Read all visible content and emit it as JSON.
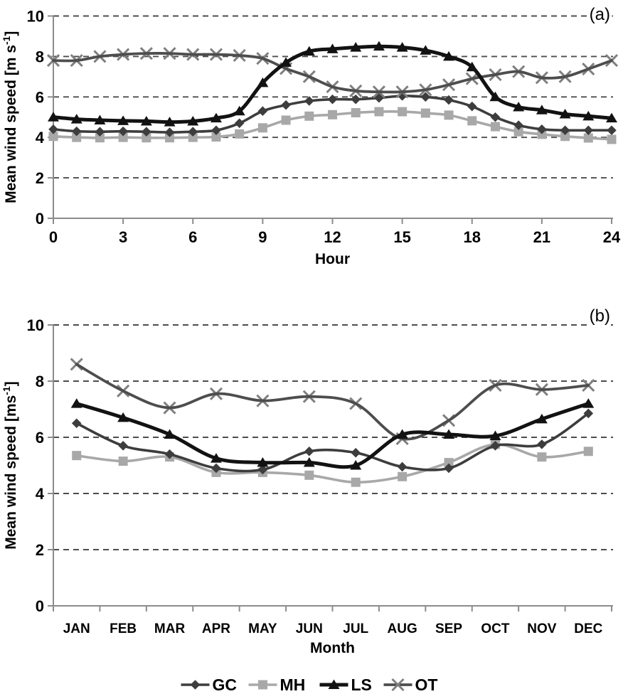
{
  "figure": {
    "background": "#ffffff",
    "text_color": "#000000",
    "axis_color": "#8c8c8c",
    "grid_color": "#4d4d4d"
  },
  "chart_data": [
    {
      "id": "a",
      "type": "line",
      "panel_label": "(a)",
      "xlabel": "Hour",
      "ylabel": "Mean wind speed [m s⁻¹]",
      "x": [
        0,
        1,
        2,
        3,
        4,
        5,
        6,
        7,
        8,
        9,
        10,
        11,
        12,
        13,
        14,
        15,
        16,
        17,
        18,
        19,
        20,
        21,
        22,
        23,
        24
      ],
      "xticks": [
        0,
        3,
        6,
        9,
        12,
        15,
        18,
        21,
        24
      ],
      "ylim": [
        0,
        10
      ],
      "yticks": [
        0,
        2,
        4,
        6,
        8,
        10
      ],
      "grid": "horizontal-dashed",
      "series": [
        {
          "name": "GC",
          "marker": "diamond",
          "color": "#3d3d3d",
          "marker_color": "#3d3d3d",
          "line_width": 3.6,
          "values": [
            4.4,
            4.3,
            4.28,
            4.3,
            4.28,
            4.25,
            4.28,
            4.35,
            4.7,
            5.3,
            5.6,
            5.8,
            5.88,
            5.88,
            5.95,
            6.05,
            6.0,
            5.85,
            5.53,
            5.0,
            4.6,
            4.4,
            4.35,
            4.35,
            4.35
          ]
        },
        {
          "name": "MH",
          "marker": "square",
          "color": "#a8a8a8",
          "marker_color": "#a8a8a8",
          "line_width": 3.6,
          "values": [
            4.05,
            4.0,
            3.98,
            4.0,
            3.98,
            3.98,
            4.0,
            4.02,
            4.17,
            4.47,
            4.85,
            5.05,
            5.12,
            5.22,
            5.27,
            5.27,
            5.2,
            5.1,
            4.82,
            4.53,
            4.28,
            4.15,
            4.05,
            3.97,
            3.9
          ]
        },
        {
          "name": "LS",
          "marker": "triangle",
          "color": "#121212",
          "marker_color": "#121212",
          "line_width": 5,
          "values": [
            5.0,
            4.9,
            4.85,
            4.82,
            4.8,
            4.76,
            4.8,
            4.95,
            5.3,
            6.7,
            7.7,
            8.25,
            8.37,
            8.45,
            8.5,
            8.45,
            8.3,
            8.0,
            7.48,
            6.0,
            5.5,
            5.35,
            5.15,
            5.05,
            4.95
          ]
        },
        {
          "name": "OT",
          "marker": "x",
          "color": "#4d4d4d",
          "marker_color": "#7f7f7f",
          "line_width": 3.8,
          "values": [
            7.8,
            7.8,
            8.0,
            8.1,
            8.15,
            8.15,
            8.1,
            8.1,
            8.05,
            7.9,
            7.4,
            7.0,
            6.5,
            6.3,
            6.25,
            6.25,
            6.35,
            6.6,
            6.9,
            7.1,
            7.25,
            6.95,
            7.0,
            7.38,
            7.8
          ]
        }
      ]
    },
    {
      "id": "b",
      "type": "line",
      "panel_label": "(b)",
      "xlabel": "Month",
      "ylabel": "Mean wind speed [ms⁻¹]",
      "categories": [
        "JAN",
        "FEB",
        "MAR",
        "APR",
        "MAY",
        "JUN",
        "JUL",
        "AUG",
        "SEP",
        "OCT",
        "NOV",
        "DEC"
      ],
      "ylim": [
        0,
        10
      ],
      "yticks": [
        0,
        2,
        4,
        6,
        8,
        10
      ],
      "grid": "horizontal-dashed",
      "series": [
        {
          "name": "GC",
          "marker": "diamond",
          "color": "#3d3d3d",
          "marker_color": "#3d3d3d",
          "line_width": 3.6,
          "values": [
            6.5,
            5.7,
            5.4,
            4.9,
            4.85,
            5.5,
            5.45,
            4.95,
            4.9,
            5.7,
            5.75,
            6.85
          ]
        },
        {
          "name": "MH",
          "marker": "square",
          "color": "#a8a8a8",
          "marker_color": "#a8a8a8",
          "line_width": 3.6,
          "values": [
            5.35,
            5.15,
            5.3,
            4.75,
            4.75,
            4.65,
            4.4,
            4.6,
            5.1,
            5.75,
            5.3,
            5.5
          ]
        },
        {
          "name": "LS",
          "marker": "triangle",
          "color": "#121212",
          "marker_color": "#121212",
          "line_width": 5,
          "values": [
            7.2,
            6.7,
            6.1,
            5.25,
            5.1,
            5.1,
            5.0,
            6.1,
            6.1,
            6.05,
            6.65,
            7.2
          ]
        },
        {
          "name": "OT",
          "marker": "x",
          "color": "#4d4d4d",
          "marker_color": "#7f7f7f",
          "line_width": 3.8,
          "values": [
            8.6,
            7.65,
            7.05,
            7.55,
            7.3,
            7.45,
            7.2,
            5.95,
            6.6,
            7.85,
            7.7,
            7.85
          ]
        }
      ]
    }
  ],
  "legend": {
    "position": "bottom-center",
    "items": [
      {
        "label": "GC",
        "marker": "diamond",
        "color": "#3d3d3d",
        "marker_color": "#3d3d3d",
        "line_width": 3.6
      },
      {
        "label": "MH",
        "marker": "square",
        "color": "#a8a8a8",
        "marker_color": "#a8a8a8",
        "line_width": 3.6
      },
      {
        "label": "LS",
        "marker": "triangle",
        "color": "#121212",
        "marker_color": "#121212",
        "line_width": 5
      },
      {
        "label": "OT",
        "marker": "x",
        "color": "#4d4d4d",
        "marker_color": "#7f7f7f",
        "line_width": 3.8
      }
    ]
  }
}
